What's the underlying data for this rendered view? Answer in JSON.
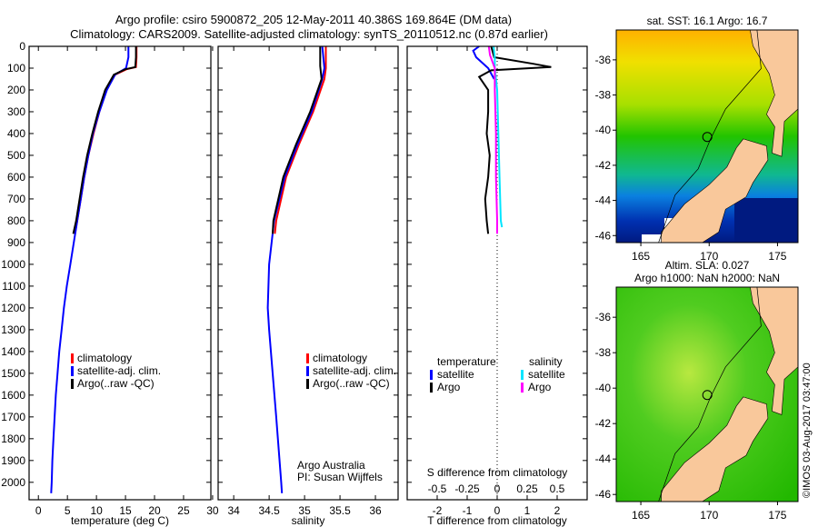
{
  "title_line1": "Argo profile: csiro 5900872_205 12-May-2011 40.386S 169.864E (DM data)",
  "title_line2": "Climatology: CARS2009. Satellite-adjusted climatology: synTS_20110512.nc (0.87d earlier)",
  "copyright": "©IMOS 03-Aug-2017 03:47:00",
  "colors": {
    "climatology": "#ff0000",
    "satellite": "#0000ff",
    "argo": "#000000",
    "s_satellite": "#00e5ff",
    "s_argo": "#ff00ff",
    "land": "#f9c89b"
  },
  "chart_data": [
    {
      "type": "line",
      "id": "temperature",
      "xlabel": "temperature (deg C)",
      "xticks": [
        0,
        5,
        10,
        15,
        20,
        25,
        30
      ],
      "xlim": [
        -1.6,
        29.7
      ],
      "ylim": [
        0,
        2080
      ],
      "yticks": [
        0,
        100,
        200,
        300,
        400,
        500,
        600,
        700,
        800,
        900,
        1000,
        1100,
        1200,
        1300,
        1400,
        1500,
        1600,
        1700,
        1800,
        1900,
        2000
      ],
      "legend": [
        "climatology",
        "satellite-adj. clim.",
        "Argo(..raw -QC)"
      ],
      "series": [
        {
          "name": "climatology",
          "color": "#ff0000",
          "points": [
            [
              16.9,
              0
            ],
            [
              16.9,
              50
            ],
            [
              16.8,
              95
            ],
            [
              15.2,
              105
            ],
            [
              13.2,
              130
            ],
            [
              11.7,
              200
            ],
            [
              10.5,
              300
            ],
            [
              9.5,
              400
            ],
            [
              8.6,
              500
            ],
            [
              7.9,
              600
            ],
            [
              7.3,
              700
            ],
            [
              6.7,
              800
            ],
            [
              6.3,
              860
            ]
          ]
        },
        {
          "name": "satellite-adj. clim.",
          "color": "#0000ff",
          "points": [
            [
              15.5,
              0
            ],
            [
              15.5,
              50
            ],
            [
              15.1,
              100
            ],
            [
              13.2,
              130
            ],
            [
              11.8,
              200
            ],
            [
              10.5,
              300
            ],
            [
              9.4,
              400
            ],
            [
              8.6,
              500
            ],
            [
              7.9,
              600
            ],
            [
              7.3,
              700
            ],
            [
              6.7,
              800
            ],
            [
              6.1,
              900
            ],
            [
              5.5,
              1000
            ],
            [
              4.9,
              1100
            ],
            [
              4.4,
              1200
            ],
            [
              4.0,
              1300
            ],
            [
              3.6,
              1400
            ],
            [
              3.3,
              1500
            ],
            [
              3.0,
              1600
            ],
            [
              2.8,
              1700
            ],
            [
              2.6,
              1800
            ],
            [
              2.4,
              1900
            ],
            [
              2.3,
              2000
            ],
            [
              2.2,
              2050
            ]
          ]
        },
        {
          "name": "Argo",
          "color": "#000000",
          "points": [
            [
              16.8,
              0
            ],
            [
              16.8,
              50
            ],
            [
              16.7,
              95
            ],
            [
              15.0,
              105
            ],
            [
              13.0,
              130
            ],
            [
              11.5,
              200
            ],
            [
              10.3,
              300
            ],
            [
              9.3,
              400
            ],
            [
              8.4,
              500
            ],
            [
              7.7,
              600
            ],
            [
              7.1,
              700
            ],
            [
              6.5,
              800
            ],
            [
              6.0,
              860
            ]
          ]
        }
      ]
    },
    {
      "type": "line",
      "id": "salinity",
      "xlabel": "salinity",
      "xticks": [
        34,
        34.5,
        35,
        35.5,
        36
      ],
      "xlim": [
        33.78,
        36.32
      ],
      "ylim": [
        0,
        2080
      ],
      "legend": [
        "climatology",
        "satellite-adj. clim.",
        "Argo(..raw -QC)"
      ],
      "annotation": [
        "Argo Australia",
        "PI: Susan Wijffels"
      ],
      "series": [
        {
          "name": "climatology",
          "color": "#ff0000",
          "points": [
            [
              35.3,
              0
            ],
            [
              35.3,
              100
            ],
            [
              35.28,
              150
            ],
            [
              35.12,
              300
            ],
            [
              34.92,
              450
            ],
            [
              34.74,
              600
            ],
            [
              34.6,
              800
            ],
            [
              34.58,
              860
            ]
          ]
        },
        {
          "name": "satellite-adj. clim.",
          "color": "#0000ff",
          "points": [
            [
              35.25,
              0
            ],
            [
              35.28,
              100
            ],
            [
              35.25,
              150
            ],
            [
              35.1,
              300
            ],
            [
              34.9,
              450
            ],
            [
              34.72,
              600
            ],
            [
              34.57,
              800
            ],
            [
              34.5,
              1000
            ],
            [
              34.48,
              1200
            ],
            [
              34.5,
              1300
            ],
            [
              34.55,
              1500
            ],
            [
              34.6,
              1700
            ],
            [
              34.67,
              2000
            ],
            [
              34.68,
              2050
            ]
          ]
        },
        {
          "name": "Argo",
          "color": "#000000",
          "points": [
            [
              35.22,
              0
            ],
            [
              35.22,
              90
            ],
            [
              35.24,
              150
            ],
            [
              35.08,
              300
            ],
            [
              34.88,
              450
            ],
            [
              34.7,
              600
            ],
            [
              34.56,
              800
            ],
            [
              34.55,
              860
            ]
          ]
        }
      ]
    },
    {
      "type": "line",
      "id": "difference",
      "xlabel": "T difference from climatology",
      "xticks": [
        -2,
        -1,
        0,
        1,
        2
      ],
      "xlim": [
        -3,
        3
      ],
      "x2label": "S difference from climatology",
      "x2ticks": [
        -0.5,
        -0.25,
        0,
        0.25,
        0.5
      ],
      "x2ticklabels": [
        "-0.5",
        "-0.25",
        "0",
        "0.25",
        "0.5"
      ],
      "x2lim": [
        -0.75,
        0.75
      ],
      "ylim": [
        0,
        2080
      ],
      "legend": {
        "temperature_heading": "temperature",
        "salinity_heading": "salinity",
        "items": [
          "satellite",
          "Argo",
          "satellite",
          "Argo"
        ]
      },
      "series": [
        {
          "name": "T satellite",
          "axis": "T",
          "color": "#0000ff",
          "points": [
            [
              -0.6,
              0
            ],
            [
              -0.8,
              20
            ],
            [
              -0.7,
              50
            ],
            [
              -0.3,
              100
            ],
            [
              -0.1,
              150
            ]
          ]
        },
        {
          "name": "T Argo",
          "axis": "T",
          "color": "#000000",
          "points": [
            [
              -0.2,
              0
            ],
            [
              -0.1,
              50
            ],
            [
              1.2,
              80
            ],
            [
              1.8,
              95
            ],
            [
              -0.2,
              110
            ],
            [
              -0.6,
              140
            ],
            [
              -0.3,
              200
            ],
            [
              -0.3,
              300
            ],
            [
              -0.35,
              400
            ],
            [
              -0.25,
              500
            ],
            [
              -0.3,
              600
            ],
            [
              -0.4,
              700
            ],
            [
              -0.35,
              800
            ],
            [
              -0.3,
              860
            ]
          ]
        },
        {
          "name": "S satellite",
          "axis": "S",
          "color": "#00e5ff",
          "points": [
            [
              -0.03,
              0
            ],
            [
              -0.02,
              50
            ],
            [
              -0.02,
              100
            ],
            [
              0.0,
              200
            ],
            [
              0.01,
              400
            ],
            [
              0.02,
              600
            ],
            [
              0.03,
              800
            ],
            [
              0.04,
              830
            ]
          ]
        },
        {
          "name": "S Argo",
          "axis": "S",
          "color": "#ff00ff",
          "points": [
            [
              -0.07,
              0
            ],
            [
              -0.06,
              40
            ],
            [
              -0.02,
              100
            ],
            [
              -0.02,
              200
            ],
            [
              -0.01,
              400
            ],
            [
              -0.01,
              600
            ],
            [
              0.0,
              800
            ],
            [
              0.0,
              860
            ]
          ]
        }
      ]
    }
  ],
  "maps": [
    {
      "id": "sst",
      "title_lines": [
        "sat. SST: 16.1 Argo: 16.7"
      ],
      "xticks": [
        165,
        170,
        175
      ],
      "yticks": [
        -36,
        -38,
        -40,
        -42,
        -44,
        -46
      ],
      "profile_lon": 169.864,
      "profile_lat": -40.386
    },
    {
      "id": "sla",
      "title_lines": [
        "Altim. SLA: 0.027",
        "Argo h1000: NaN h2000: NaN"
      ],
      "xticks": [
        165,
        170,
        175
      ],
      "yticks": [
        -36,
        -38,
        -40,
        -42,
        -44,
        -46
      ],
      "profile_lon": 169.864,
      "profile_lat": -40.386
    }
  ]
}
